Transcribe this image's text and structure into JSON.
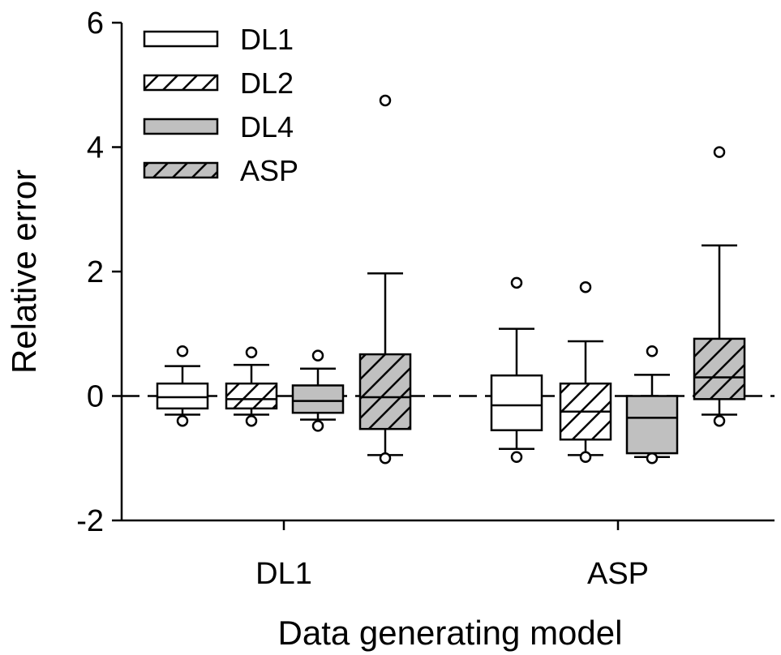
{
  "chart_data": {
    "type": "box",
    "xlabel": "Data generating model",
    "ylabel": "Relative error",
    "ylim": [
      -2,
      6
    ],
    "yticks": [
      -2,
      0,
      2,
      4,
      6
    ],
    "categories": [
      "DL1",
      "ASP"
    ],
    "reference_line": {
      "y": 0,
      "style": "dashed"
    },
    "legend_position": "top-left",
    "series": [
      {
        "name": "DL1",
        "pattern": "plain",
        "fill": "#ffffff"
      },
      {
        "name": "DL2",
        "pattern": "hatched",
        "fill": "#ffffff"
      },
      {
        "name": "DL4",
        "pattern": "plain",
        "fill": "#c0c0c0"
      },
      {
        "name": "ASP",
        "pattern": "hatched",
        "fill": "#c0c0c0"
      }
    ],
    "boxes": {
      "DL1": [
        {
          "series": "DL1",
          "whisker_low": -0.3,
          "q1": -0.2,
          "median": -0.02,
          "q3": 0.2,
          "whisker_high": 0.48,
          "outliers": [
            0.72,
            -0.4
          ]
        },
        {
          "series": "DL2",
          "whisker_low": -0.3,
          "q1": -0.2,
          "median": -0.05,
          "q3": 0.2,
          "whisker_high": 0.5,
          "outliers": [
            0.7,
            -0.4
          ]
        },
        {
          "series": "DL4",
          "whisker_low": -0.38,
          "q1": -0.27,
          "median": -0.08,
          "q3": 0.17,
          "whisker_high": 0.44,
          "outliers": [
            0.65,
            -0.48
          ]
        },
        {
          "series": "ASP",
          "whisker_low": -0.95,
          "q1": -0.53,
          "median": -0.02,
          "q3": 0.67,
          "whisker_high": 1.97,
          "outliers": [
            4.75,
            -1.0
          ]
        }
      ],
      "ASP": [
        {
          "series": "DL1",
          "whisker_low": -0.85,
          "q1": -0.55,
          "median": -0.15,
          "q3": 0.33,
          "whisker_high": 1.08,
          "outliers": [
            1.82,
            -0.98
          ]
        },
        {
          "series": "DL2",
          "whisker_low": -0.95,
          "q1": -0.7,
          "median": -0.25,
          "q3": 0.2,
          "whisker_high": 0.88,
          "outliers": [
            1.75,
            -0.98
          ]
        },
        {
          "series": "DL4",
          "whisker_low": -0.98,
          "q1": -0.92,
          "median": -0.35,
          "q3": 0.0,
          "whisker_high": 0.34,
          "outliers": [
            0.72,
            -1.0
          ]
        },
        {
          "series": "ASP",
          "whisker_low": -0.3,
          "q1": -0.05,
          "median": 0.3,
          "q3": 0.92,
          "whisker_high": 2.42,
          "outliers": [
            3.92,
            -0.4
          ]
        }
      ]
    }
  }
}
